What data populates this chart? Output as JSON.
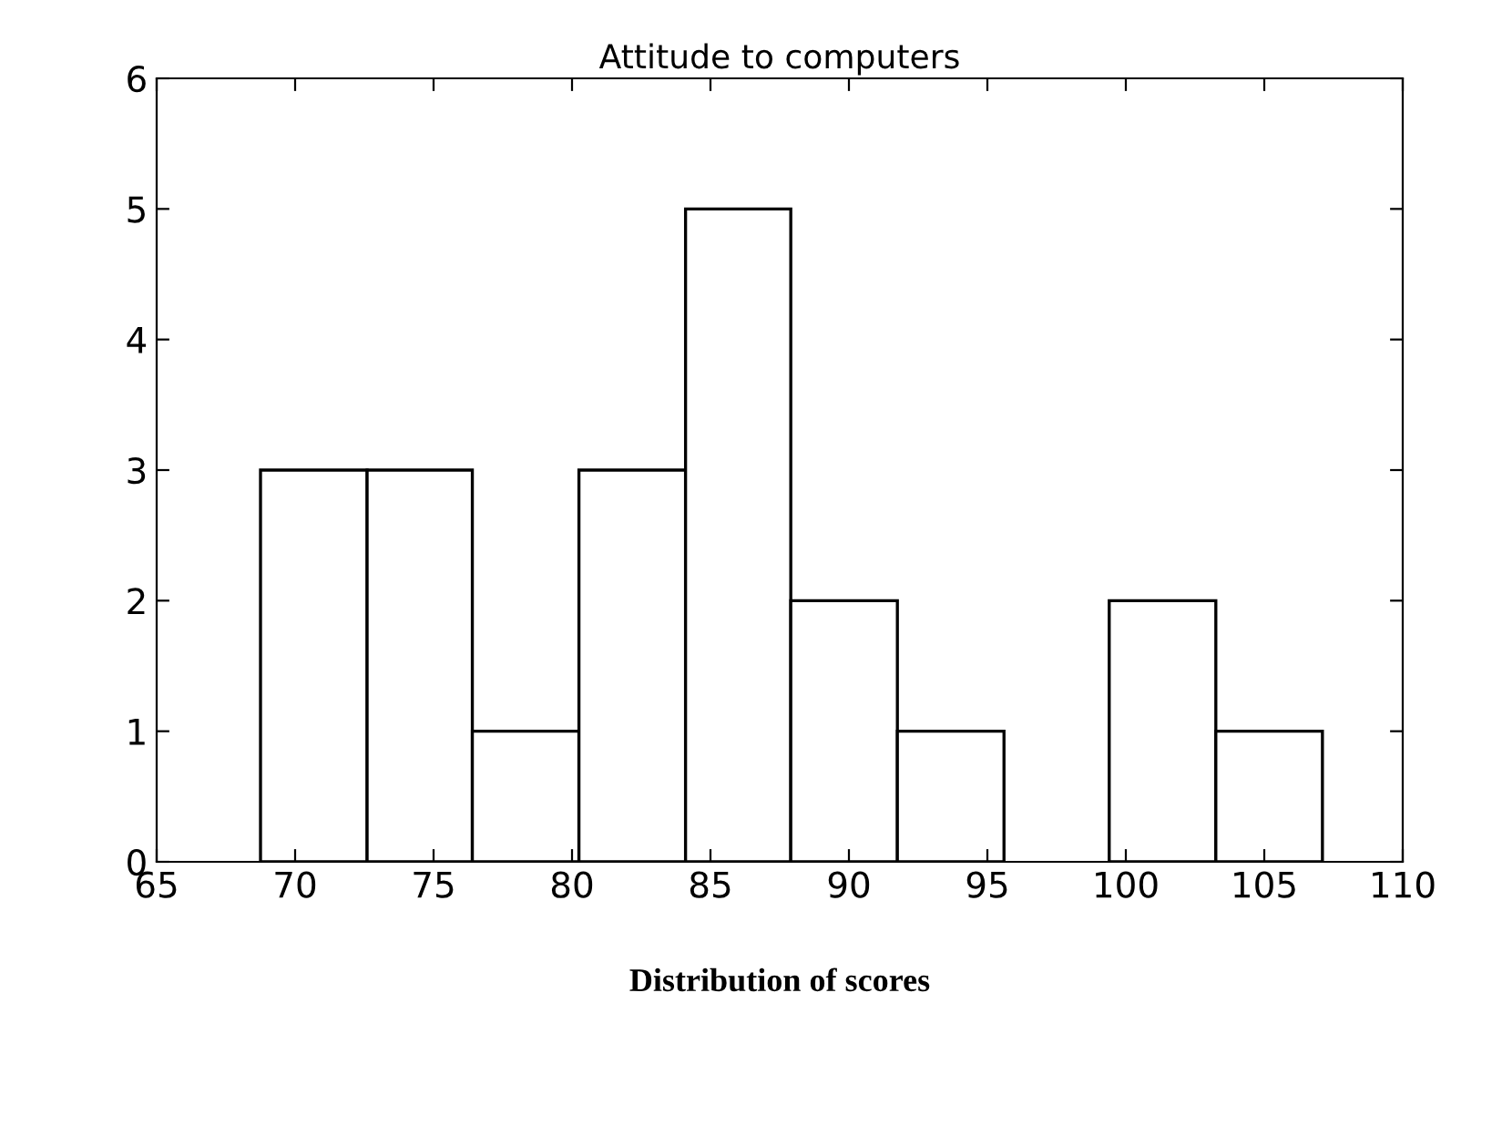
{
  "chart_data": {
    "type": "histogram",
    "title": "Attitude to computers",
    "xlabel": "Distribution of scores",
    "bins": [
      68.75,
      72.6,
      76.4,
      80.25,
      84.1,
      87.9,
      91.75,
      95.6,
      99.4,
      103.25,
      107.1
    ],
    "values": [
      3,
      3,
      1,
      3,
      5,
      2,
      1,
      0,
      2,
      1
    ],
    "color": "#ffffff",
    "xlim": [
      65,
      110
    ],
    "xticks": [
      65,
      70,
      75,
      80,
      85,
      90,
      95,
      100,
      105,
      110
    ],
    "ylim": [
      0,
      6
    ],
    "yticks": [
      0,
      1,
      2,
      3,
      4,
      5,
      6
    ],
    "grid": false
  }
}
